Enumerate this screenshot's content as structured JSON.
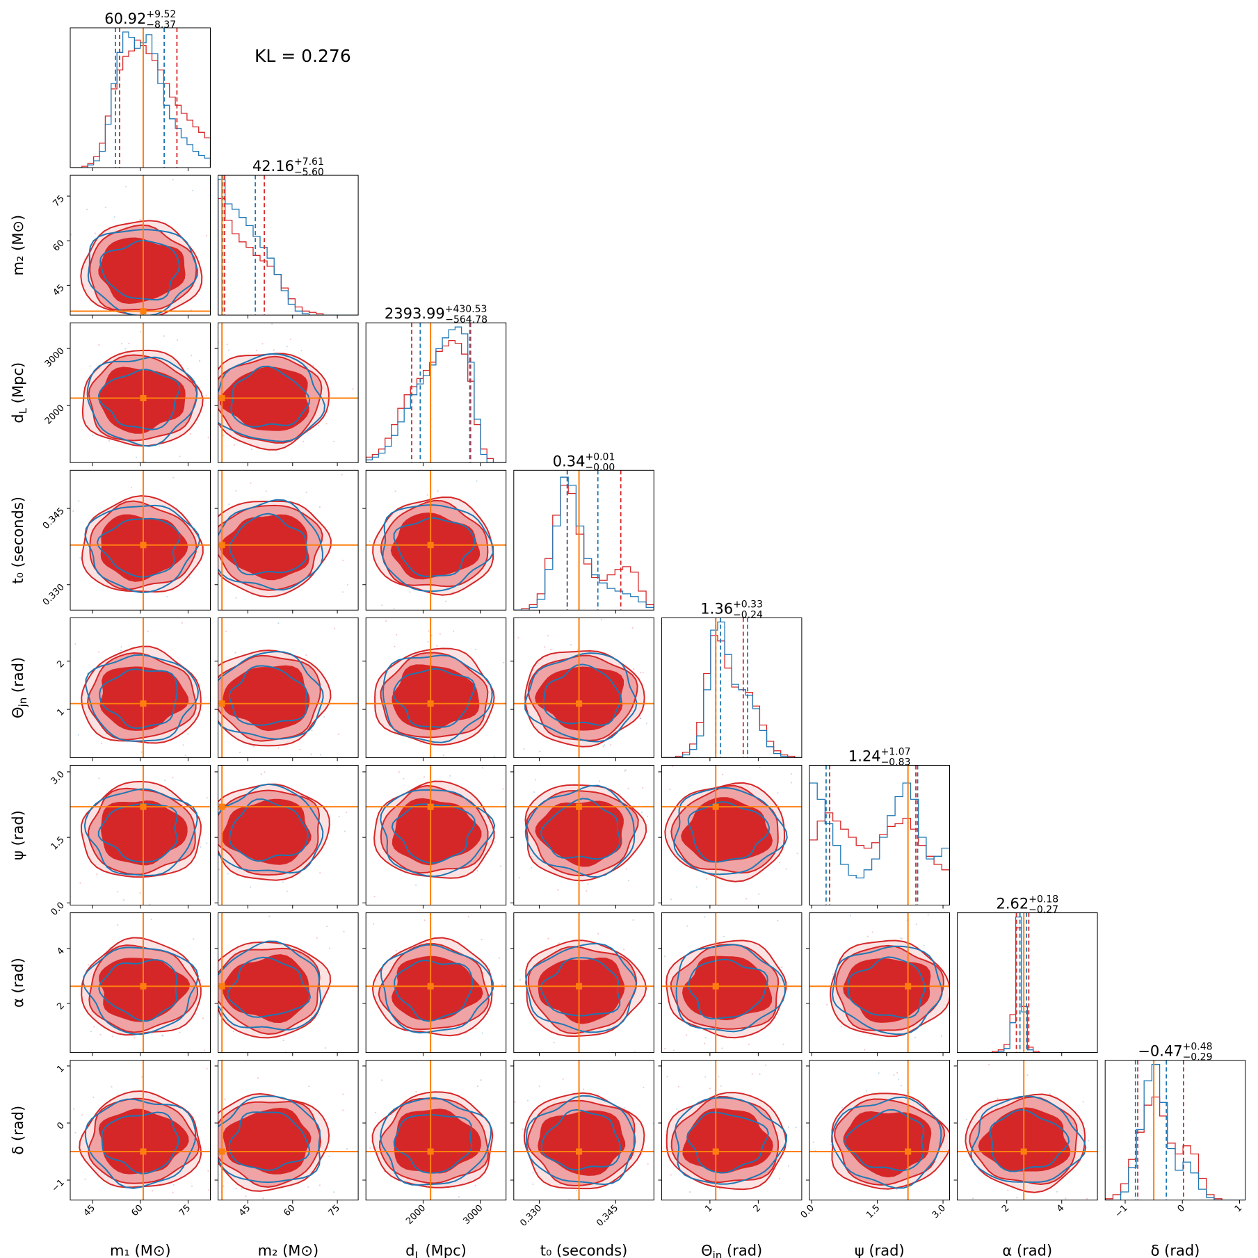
{
  "annotation": {
    "text": "KL = 0.276"
  },
  "colors": {
    "blue": "#1f77b4",
    "red": "#d62728",
    "red_light": "#f0a3a4",
    "red_mid": "#e06667",
    "truth": "#ff7f0e"
  },
  "chart_data": {
    "type": "corner",
    "params": [
      {
        "id": "m1",
        "label": "m₁ (M⊙)",
        "range": [
          38,
          82
        ],
        "ticks": [
          45,
          60,
          75
        ],
        "tick_labels": [
          "45",
          "60",
          "75"
        ],
        "truth": 60.92,
        "title": {
          "median": "60.92",
          "plus": "+9.52",
          "minus": "−8.37"
        },
        "quantiles_blue": [
          52.2,
          67.5
        ],
        "quantiles_red": [
          53.5,
          71.5
        ],
        "hist_blue": [
          0,
          0,
          0,
          0.02,
          0.05,
          0.12,
          0.32,
          0.62,
          0.85,
          1.0,
          0.96,
          0.88,
          0.92,
          0.98,
          0.84,
          0.62,
          0.46,
          0.36,
          0.29,
          0.22,
          0.17,
          0.12,
          0.09,
          0.07
        ],
        "hist_red": [
          0,
          0,
          0.01,
          0.03,
          0.08,
          0.18,
          0.38,
          0.58,
          0.72,
          0.82,
          0.86,
          0.94,
          0.9,
          0.84,
          0.79,
          0.72,
          0.62,
          0.52,
          0.46,
          0.4,
          0.35,
          0.3,
          0.26,
          0.22
        ]
      },
      {
        "id": "m2",
        "label": "m₂ (M⊙)",
        "range": [
          35,
          82
        ],
        "ticks": [
          45,
          60,
          75
        ],
        "tick_labels": [
          "45",
          "60",
          "75"
        ],
        "truth": 36.3,
        "title": {
          "median": "42.16",
          "plus": "+7.61",
          "minus": "−5.60"
        },
        "quantiles_blue": [
          36.6,
          47.5
        ],
        "quantiles_red": [
          37.2,
          50.5
        ],
        "hist_blue": [
          1.0,
          0.82,
          0.78,
          0.72,
          0.66,
          0.58,
          0.5,
          0.42,
          0.3,
          0.18,
          0.08,
          0.03,
          0.01,
          0,
          0,
          0,
          0,
          0,
          0,
          0
        ],
        "hist_red": [
          0.86,
          0.7,
          0.6,
          0.54,
          0.5,
          0.44,
          0.4,
          0.36,
          0.3,
          0.2,
          0.12,
          0.06,
          0.03,
          0.02,
          0.01,
          0,
          0,
          0,
          0,
          0
        ]
      },
      {
        "id": "dL",
        "label": "d_L (Mpc)",
        "range": [
          1000,
          3450
        ],
        "ticks": [
          2000,
          3000
        ],
        "tick_labels": [
          "2000",
          "3000"
        ],
        "truth": 2130,
        "title": {
          "median": "2393.99",
          "plus": "+430.53",
          "minus": "−564.78"
        },
        "quantiles_blue": [
          1950,
          2815
        ],
        "quantiles_red": [
          1800,
          2830
        ],
        "hist_blue": [
          0.02,
          0.04,
          0.07,
          0.12,
          0.2,
          0.3,
          0.4,
          0.5,
          0.58,
          0.64,
          0.72,
          0.84,
          0.92,
          0.98,
          1.0,
          0.95,
          0.74,
          0.32,
          0.06,
          0,
          0,
          0
        ],
        "hist_red": [
          0.04,
          0.06,
          0.1,
          0.18,
          0.28,
          0.4,
          0.5,
          0.56,
          0.62,
          0.68,
          0.74,
          0.82,
          0.86,
          0.9,
          0.88,
          0.8,
          0.6,
          0.28,
          0.1,
          0.03,
          0,
          0
        ]
      },
      {
        "id": "t0",
        "label": "t₀ (seconds)",
        "range": [
          0.325,
          0.3525
        ],
        "ticks": [
          0.33,
          0.345
        ],
        "tick_labels": [
          "0.330",
          "0.345"
        ],
        "truth": 0.3378,
        "title": {
          "median": "0.34",
          "plus": "+0.01",
          "minus": "−0.00"
        },
        "quantiles_blue": [
          0.3355,
          0.3415
        ],
        "quantiles_red": [
          0.3355,
          0.346
        ],
        "hist_blue": [
          0,
          0,
          0.02,
          0.08,
          0.3,
          0.62,
          0.98,
          0.92,
          0.62,
          0.38,
          0.26,
          0.2,
          0.16,
          0.14,
          0.12,
          0.1,
          0.06,
          0.02
        ],
        "hist_red": [
          0,
          0.01,
          0.04,
          0.12,
          0.38,
          0.7,
          0.92,
          0.86,
          0.56,
          0.34,
          0.24,
          0.22,
          0.26,
          0.3,
          0.32,
          0.28,
          0.14,
          0.04
        ]
      },
      {
        "id": "theta_jn",
        "label": "Θ_jn (rad)",
        "range": [
          0.0,
          2.9
        ],
        "ticks": [
          1,
          2
        ],
        "tick_labels": [
          "1",
          "2"
        ],
        "truth": 1.12,
        "title": {
          "median": "1.36",
          "plus": "+0.33",
          "minus": "−0.24"
        },
        "quantiles_blue": [
          1.22,
          1.78
        ],
        "quantiles_red": [
          1.12,
          1.69
        ],
        "hist_blue": [
          0,
          0,
          0,
          0.02,
          0.06,
          0.16,
          0.5,
          0.94,
          1.0,
          0.76,
          0.54,
          0.5,
          0.46,
          0.36,
          0.2,
          0.08,
          0.03,
          0.01,
          0,
          0
        ],
        "hist_red": [
          0,
          0,
          0.01,
          0.04,
          0.1,
          0.26,
          0.62,
          0.9,
          0.86,
          0.66,
          0.52,
          0.5,
          0.48,
          0.38,
          0.24,
          0.12,
          0.05,
          0.02,
          0.01,
          0
        ]
      },
      {
        "id": "psi",
        "label": "ψ (rad)",
        "range": [
          -0.05,
          3.15
        ],
        "ticks": [
          0.0,
          1.5,
          3.0
        ],
        "tick_labels": [
          "0.0",
          "1.5",
          "3.0"
        ],
        "truth": 2.2,
        "title": {
          "median": "1.24",
          "plus": "+1.07",
          "minus": "−0.83"
        },
        "quantiles_blue": [
          0.33,
          2.42
        ],
        "quantiles_red": [
          0.41,
          2.38
        ],
        "hist_blue": [
          0.9,
          0.78,
          0.6,
          0.44,
          0.3,
          0.22,
          0.2,
          0.26,
          0.34,
          0.5,
          0.66,
          0.8,
          0.9,
          0.78,
          0.5,
          0.34,
          0.36,
          0.42
        ],
        "hist_red": [
          0.48,
          0.62,
          0.68,
          0.62,
          0.56,
          0.5,
          0.44,
          0.42,
          0.46,
          0.52,
          0.58,
          0.6,
          0.64,
          0.56,
          0.44,
          0.36,
          0.3,
          0.26
        ]
      },
      {
        "id": "alpha",
        "label": "α (rad)",
        "range": [
          0.2,
          5.3
        ],
        "ticks": [
          2,
          4
        ],
        "tick_labels": [
          "2",
          "4"
        ],
        "truth": 2.62,
        "title": {
          "median": "2.62",
          "plus": "+0.18",
          "minus": "−0.27"
        },
        "quantiles_blue": [
          2.48,
          2.72
        ],
        "quantiles_red": [
          2.35,
          2.8
        ],
        "hist_blue": [
          0,
          0,
          0,
          0,
          0,
          0,
          0,
          0.01,
          0.03,
          0.22,
          1.0,
          0.3,
          0.02,
          0,
          0,
          0,
          0,
          0,
          0,
          0,
          0,
          0,
          0,
          0
        ],
        "hist_red": [
          0,
          0,
          0,
          0,
          0,
          0,
          0.01,
          0.02,
          0.06,
          0.28,
          0.92,
          0.34,
          0.04,
          0.01,
          0,
          0,
          0,
          0,
          0,
          0,
          0,
          0,
          0,
          0
        ]
      },
      {
        "id": "delta",
        "label": "δ (rad)",
        "range": [
          -1.35,
          1.1
        ],
        "ticks": [
          -1,
          0,
          1
        ],
        "tick_labels": [
          "−1",
          "0",
          "1"
        ],
        "truth": -0.5,
        "title": {
          "median": "−0.47",
          "plus": "+0.48",
          "minus": "−0.29"
        },
        "quantiles_blue": [
          -0.82,
          -0.28
        ],
        "quantiles_red": [
          -0.78,
          0.02
        ],
        "hist_blue": [
          0,
          0,
          0.06,
          0.24,
          0.52,
          0.88,
          1.0,
          0.72,
          0.38,
          0.22,
          0.28,
          0.2,
          0.08,
          0.02,
          0,
          0,
          0,
          0
        ],
        "hist_red": [
          0.01,
          0.04,
          0.12,
          0.3,
          0.5,
          0.7,
          0.76,
          0.62,
          0.42,
          0.34,
          0.4,
          0.34,
          0.16,
          0.04,
          0.01,
          0,
          0,
          0
        ]
      }
    ]
  }
}
